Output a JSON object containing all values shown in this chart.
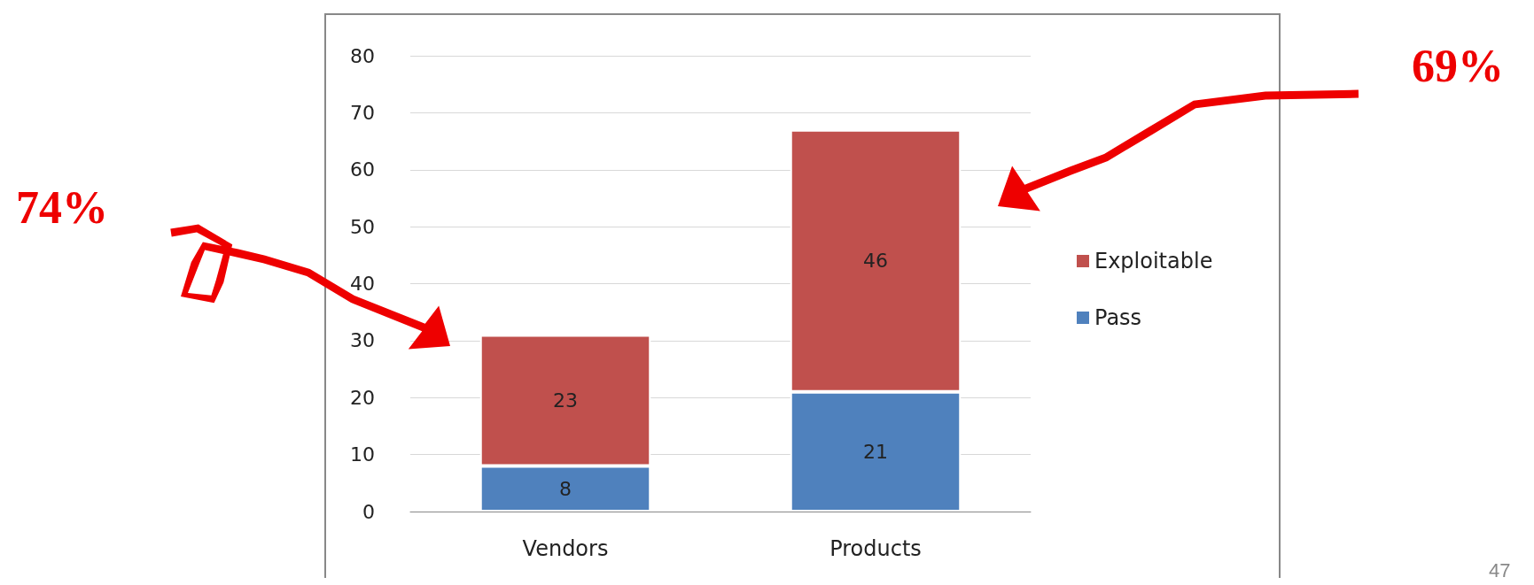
{
  "chart_data": {
    "type": "bar",
    "stacked": true,
    "categories": [
      "Vendors",
      "Products"
    ],
    "series": [
      {
        "name": "Pass",
        "color": "#4f81bd",
        "values": [
          8,
          21
        ]
      },
      {
        "name": "Exploitable",
        "color": "#c0504d",
        "values": [
          23,
          46
        ]
      }
    ],
    "ylim": [
      0,
      80
    ],
    "yticks": [
      0,
      10,
      20,
      30,
      40,
      50,
      60,
      70,
      80
    ],
    "grid": "y",
    "legend": "right",
    "data_labels": true,
    "annotations": [
      "74%",
      "69%",
      "47"
    ]
  }
}
